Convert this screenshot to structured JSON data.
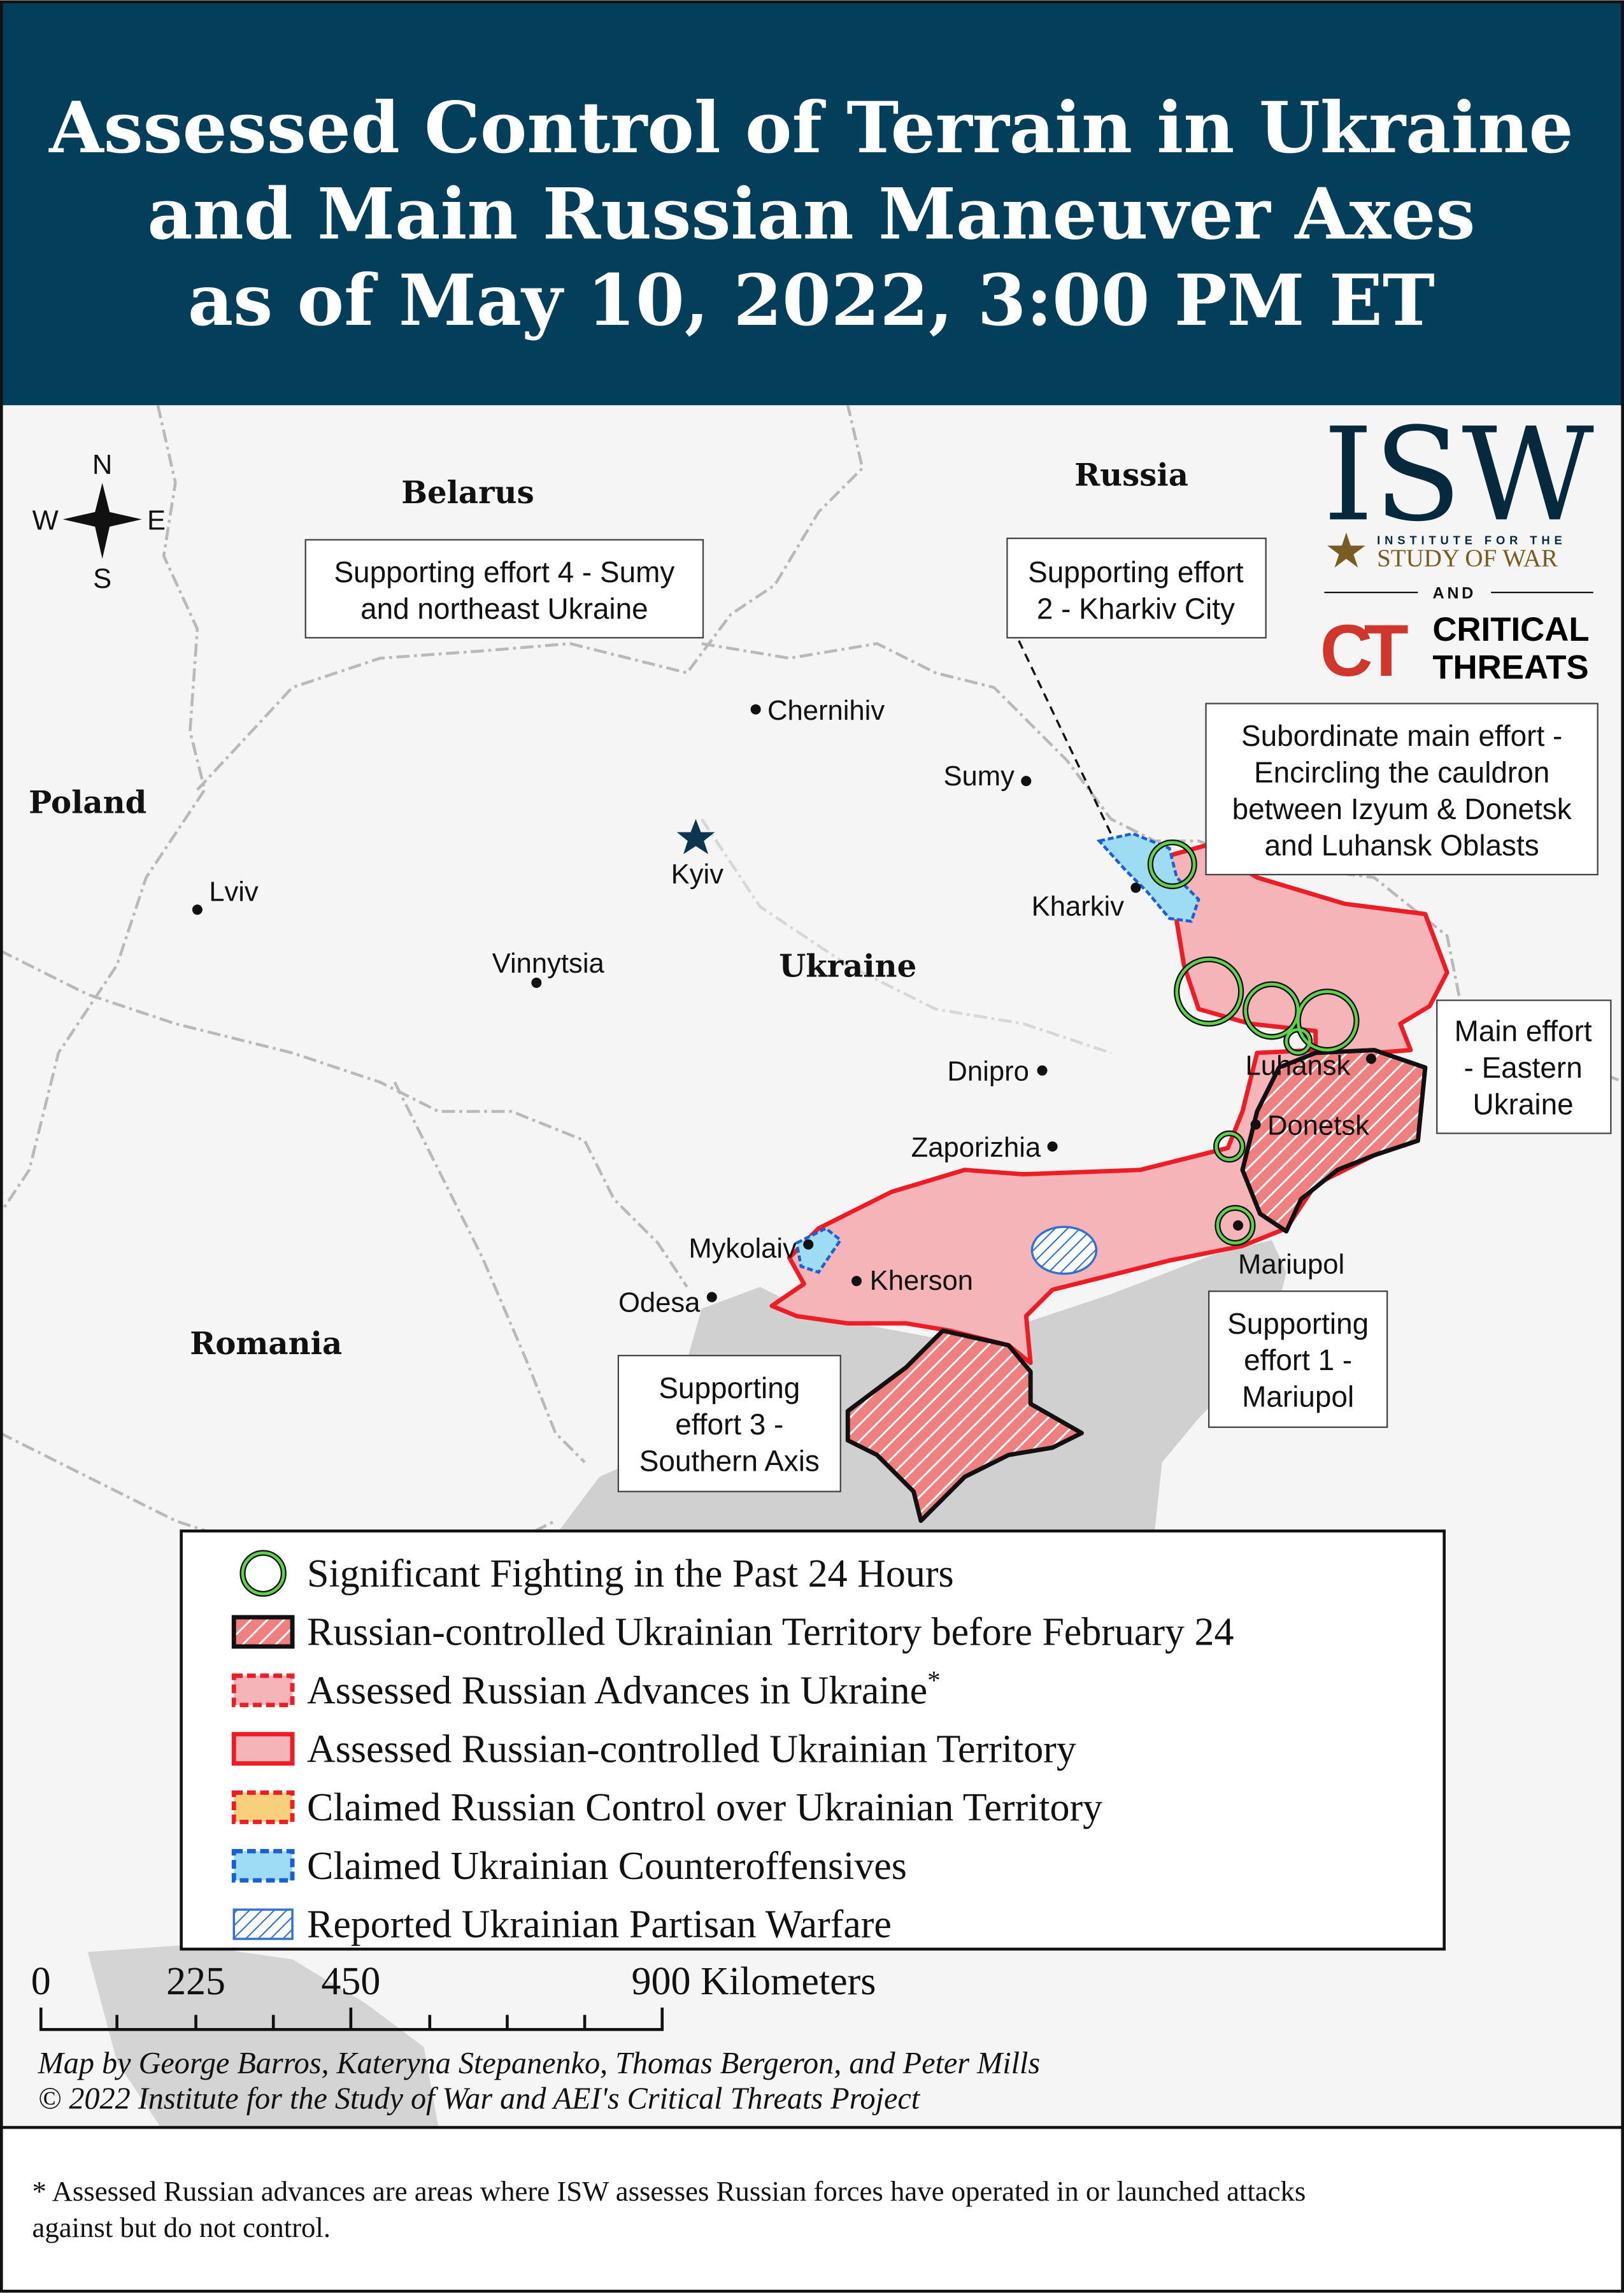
{
  "title": {
    "lines": [
      "Assessed Control of Terrain in Ukraine",
      "and Main Russian Maneuver Axes",
      "as of May 10, 2022, 3:00 PM ET"
    ]
  },
  "colors": {
    "header_bg": "#033e5a",
    "russian_control": "#f4b4b8",
    "russian_border": "#ee1c25",
    "fighting_circle": "#3cb44b",
    "ukrainian_counter": "#9edcf4",
    "sea": "#d0d0d0",
    "land": "#f5f5f5"
  },
  "compass": {
    "n": "N",
    "s": "S",
    "e": "E",
    "w": "W"
  },
  "logo": {
    "isw": "ISW",
    "isw_line1": "INSTITUTE FOR THE",
    "isw_line2": "STUDY OF WAR",
    "and": "AND",
    "ct_mark": "CT",
    "ct_line1": "CRITICAL",
    "ct_line2": "THREATS"
  },
  "countries": {
    "belarus": "Belarus",
    "russia": "Russia",
    "poland": "Poland",
    "ukraine": "Ukraine",
    "romania": "Romania"
  },
  "cities": {
    "chernihiv": "Chernihiv",
    "sumy": "Sumy",
    "kyiv": "Kyiv",
    "lviv": "Lviv",
    "vinnytsia": "Vinnytsia",
    "kharkiv": "Kharkiv",
    "dnipro": "Dnipro",
    "zaporizhia": "Zaporizhia",
    "luhansk": "Luhansk",
    "donetsk": "Donetsk",
    "mariupol": "Mariupol",
    "mykolaiv": "Mykolaiv",
    "kherson": "Kherson",
    "odesa": "Odesa"
  },
  "callouts": {
    "se4": [
      "Supporting effort 4 - Sumy",
      "and northeast Ukraine"
    ],
    "se2": [
      "Supporting effort",
      "2 - Kharkiv City"
    ],
    "subordinate": [
      "Subordinate main effort -",
      "Encircling the cauldron",
      "between Izyum & Donetsk",
      "and Luhansk Oblasts"
    ],
    "main": [
      "Main effort",
      "- Eastern",
      "Ukraine"
    ],
    "se1": [
      "Supporting",
      "effort 1 -",
      "Mariupol"
    ],
    "se3": [
      "Supporting",
      "effort 3 -",
      "Southern Axis"
    ]
  },
  "legend": [
    {
      "label": "Significant Fighting in the Past 24 Hours",
      "icon": "green-circle"
    },
    {
      "label": "Russian-controlled Ukrainian Territory before February 24",
      "icon": "hatched-black-outline"
    },
    {
      "label": "Assessed Russian Advances in Ukraine",
      "sup": "*",
      "icon": "pink-dashed-red"
    },
    {
      "label": "Assessed Russian-controlled Ukrainian Territory",
      "icon": "pink-solid-red"
    },
    {
      "label": "Claimed Russian Control over Ukrainian Territory",
      "icon": "yellow-dashed-red"
    },
    {
      "label": "Claimed Ukrainian Counteroffensives",
      "icon": "blue-dashed"
    },
    {
      "label": "Reported Ukrainian Partisan Warfare",
      "icon": "blue-hatch"
    }
  ],
  "scale": {
    "ticks": [
      "0",
      "225",
      "450",
      "900 Kilometers"
    ]
  },
  "credits": {
    "line1": "Map by George Barros, Kateryna Stepanenko, Thomas Bergeron, and Peter Mills",
    "line2": "© 2022 Institute for the Study of War and AEI's Critical Threats Project"
  },
  "footnote": {
    "line1": "* Assessed Russian advances are areas where ISW assesses Russian forces have operated in or launched attacks",
    "line2": "against but do not control."
  }
}
